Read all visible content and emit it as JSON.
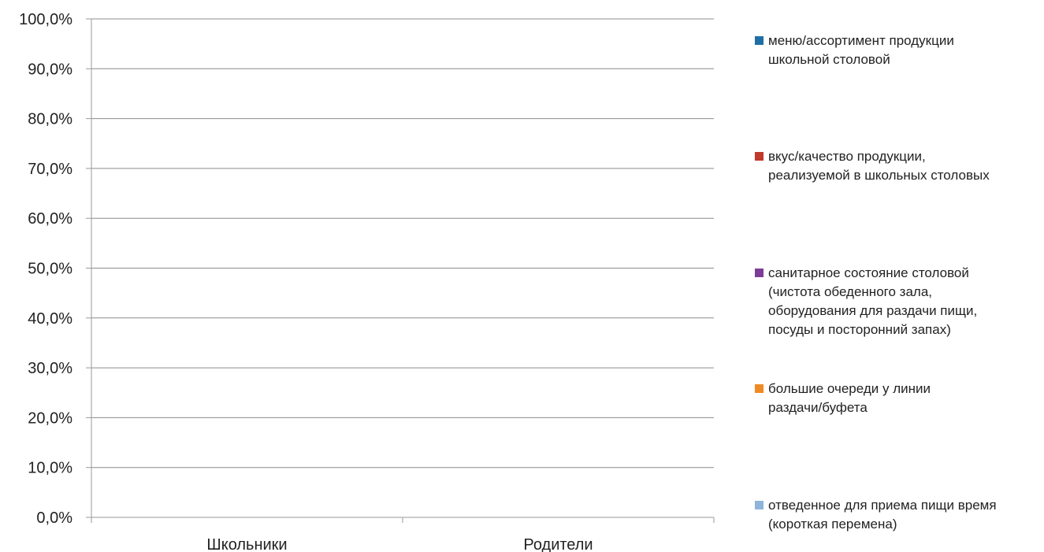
{
  "chart_data": {
    "type": "bar",
    "categories": [
      "Школьники",
      "Родители"
    ],
    "y_ticks": [
      "0,0%",
      "10,0%",
      "20,0%",
      "30,0%",
      "40,0%",
      "50,0%",
      "60,0%",
      "70,0%",
      "80,0%",
      "90,0%",
      "100,0%"
    ],
    "ylim": [
      0,
      100
    ],
    "grid": true,
    "legend_position": "right",
    "series": [
      {
        "name": "меню/ассортимент продукции школьной столовой",
        "color": "#1f6fa6",
        "values": [
          0,
          0
        ]
      },
      {
        "name": "вкус/качество продукции, реализуемой в школьных столовых",
        "color": "#c0392b",
        "values": [
          0,
          0
        ]
      },
      {
        "name": "санитарное состояние столовой (чистота обеденного зала, оборудования для раздачи пищи, посуды и посторонний запах)",
        "color": "#7d3c98",
        "values": [
          0,
          0
        ]
      },
      {
        "name": "большие очереди у линии раздачи/буфета",
        "color": "#f08a24",
        "values": [
          0,
          0
        ]
      },
      {
        "name": "отведенное для приема пищи время (короткая перемена)",
        "color": "#8fb4d9",
        "values": [
          0,
          0
        ]
      }
    ]
  },
  "legend": {
    "items": [
      {
        "label": "меню/ассортимент продукции\nшкольной столовой"
      },
      {
        "label": "вкус/качество продукции,\nреализуемой в школьных столовых"
      },
      {
        "label": "санитарное состояние столовой\n(чистота обеденного зала,\nоборудования для раздачи пищи,\nпосуды и посторонний запах)"
      },
      {
        "label": "большие очереди у линии\nраздачи/буфета"
      },
      {
        "label": "отведенное для приема пищи время\n(короткая перемена)"
      }
    ]
  }
}
